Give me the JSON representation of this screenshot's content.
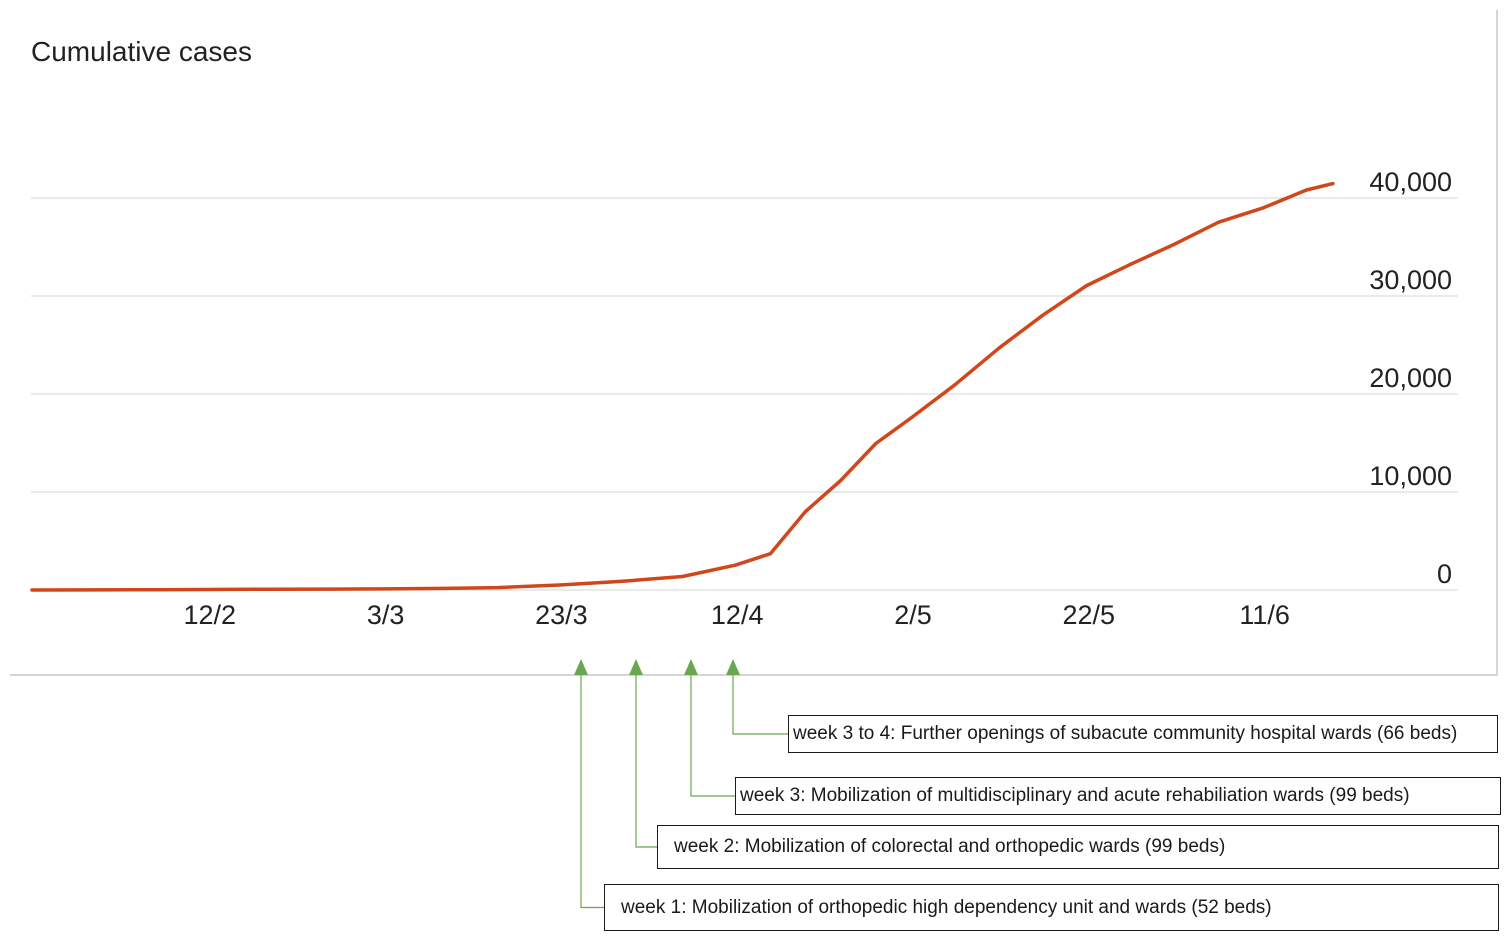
{
  "chart_data": {
    "type": "line",
    "title": "Cumulative cases",
    "xlabel": "",
    "ylabel": "",
    "x_tick_labels": [
      "12/2",
      "3/3",
      "23/3",
      "12/4",
      "2/5",
      "22/5",
      "11/6"
    ],
    "y_tick_labels": [
      "0",
      "10,000",
      "20,000",
      "30,000",
      "40,000"
    ],
    "ylim": [
      0,
      40000
    ],
    "grid": "horizontal",
    "y_axis_side": "right",
    "line_color": "#d0471c",
    "series": [
      {
        "points": [
          [
            "23/1",
            0
          ],
          [
            "30/1",
            10
          ],
          [
            "6/2",
            30
          ],
          [
            "12/2",
            47
          ],
          [
            "19/2",
            84
          ],
          [
            "26/2",
            96
          ],
          [
            "3/3",
            108
          ],
          [
            "10/3",
            166
          ],
          [
            "16/3",
            243
          ],
          [
            "23/3",
            509
          ],
          [
            "30/3",
            879
          ],
          [
            "6/4",
            1375
          ],
          [
            "12/4",
            2532
          ],
          [
            "16/4",
            3699
          ],
          [
            "20/4",
            8014
          ],
          [
            "24/4",
            11178
          ],
          [
            "28/4",
            14951
          ],
          [
            "2/5",
            17548
          ],
          [
            "7/5",
            20939
          ],
          [
            "12/5",
            24671
          ],
          [
            "17/5",
            28038
          ],
          [
            "22/5",
            31068
          ],
          [
            "27/5",
            33249
          ],
          [
            "1/6",
            35292
          ],
          [
            "6/6",
            37527
          ],
          [
            "11/6",
            38965
          ],
          [
            "16/6",
            40818
          ],
          [
            "19/6",
            41473
          ]
        ]
      }
    ]
  },
  "annotations": [
    {
      "date": "26/3",
      "label": "week 1: Mobilization of orthopedic high dependency unit and wards (52 beds)",
      "color": "#6aa84f"
    },
    {
      "date": "2/4",
      "label": "week 2: Mobilization of colorectal and orthopedic wards (99 beds)",
      "color": "#6aa84f"
    },
    {
      "date": "9/4",
      "label": "week 3: Mobilization of multidisciplinary and acute rehabiliation wards (99 beds)",
      "color": "#6aa84f"
    },
    {
      "date": "14/4",
      "label": "week 3 to 4: Further openings of subacute community hospital wards (66 beds)",
      "color": "#6aa84f"
    }
  ],
  "colors": {
    "grid": "#e3e3e3",
    "panel_border": "#d6d6d6",
    "text": "#222222"
  }
}
